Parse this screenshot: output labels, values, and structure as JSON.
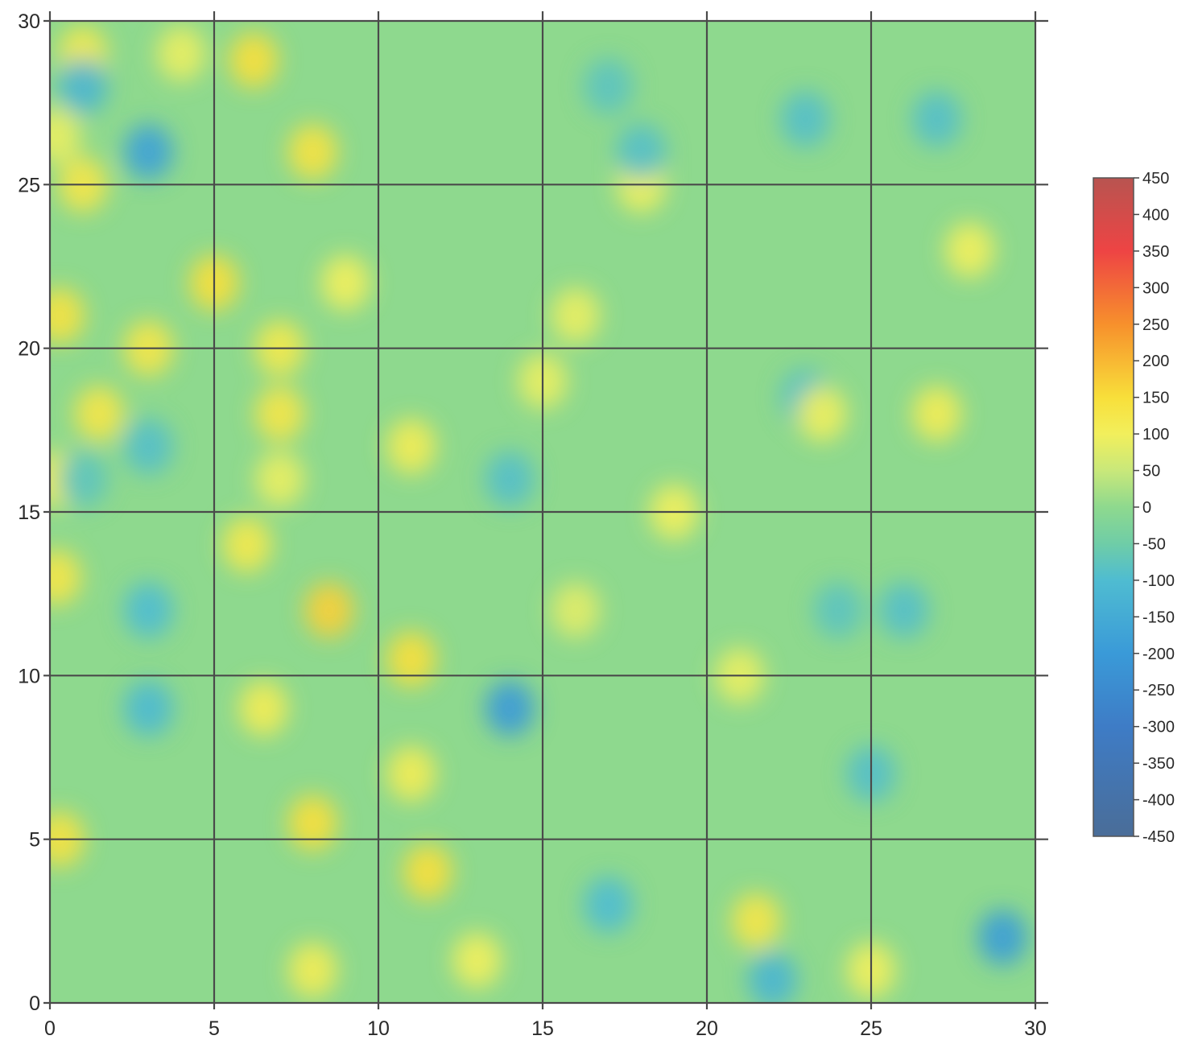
{
  "chart_data": {
    "type": "heatmap",
    "title": "",
    "xlabel": "",
    "ylabel": "",
    "xlim": [
      0,
      30
    ],
    "ylim": [
      0,
      30
    ],
    "x_ticks": [
      0,
      5,
      10,
      15,
      20,
      25,
      30
    ],
    "y_ticks": [
      0,
      5,
      10,
      15,
      20,
      25,
      30
    ],
    "x_tick_labels": [
      "0",
      "5",
      "10",
      "15",
      "20",
      "25",
      "30"
    ],
    "y_tick_labels": [
      "0",
      "5",
      "10",
      "15",
      "20",
      "25",
      "30"
    ],
    "grid": true,
    "grid_color": "#4a4a4a",
    "background_value": 0,
    "colorbar": {
      "placement": "right",
      "min": -450,
      "max": 450,
      "ticks": [
        450,
        400,
        350,
        300,
        250,
        200,
        150,
        100,
        50,
        0,
        -50,
        -100,
        -150,
        -200,
        -250,
        -300,
        -350,
        -400,
        -450
      ],
      "tick_labels": [
        "450",
        "400",
        "350",
        "300",
        "250",
        "200",
        "150",
        "100",
        "50",
        "0",
        "-50",
        "-100",
        "-150",
        "-200",
        "-250",
        "-300",
        "-350",
        "-400",
        "-450"
      ],
      "colormap": [
        {
          "value": 450,
          "color": "#b85450"
        },
        {
          "value": 350,
          "color": "#ee4444"
        },
        {
          "value": 250,
          "color": "#f7902c"
        },
        {
          "value": 150,
          "color": "#f8df3a"
        },
        {
          "value": 100,
          "color": "#f2ef5c"
        },
        {
          "value": 50,
          "color": "#c9e87a"
        },
        {
          "value": 0,
          "color": "#8ed98e"
        },
        {
          "value": -50,
          "color": "#6fcda7"
        },
        {
          "value": -100,
          "color": "#4fbcd1"
        },
        {
          "value": -200,
          "color": "#3a9ad8"
        },
        {
          "value": -300,
          "color": "#3e7cc6"
        },
        {
          "value": -450,
          "color": "#4a6d98"
        }
      ]
    },
    "features": [
      {
        "x": 1.0,
        "y": 29.0,
        "value": 120
      },
      {
        "x": 4.0,
        "y": 29.0,
        "value": 90
      },
      {
        "x": 6.2,
        "y": 28.8,
        "value": 150
      },
      {
        "x": 1.0,
        "y": 28.0,
        "value": -120
      },
      {
        "x": 3.0,
        "y": 26.0,
        "value": -180
      },
      {
        "x": 0.2,
        "y": 26.5,
        "value": 90
      },
      {
        "x": 8.0,
        "y": 26.0,
        "value": 140
      },
      {
        "x": 1.0,
        "y": 25.0,
        "value": 130
      },
      {
        "x": 5.0,
        "y": 22.0,
        "value": 150
      },
      {
        "x": 9.0,
        "y": 22.0,
        "value": 100
      },
      {
        "x": 0.3,
        "y": 21.0,
        "value": 140
      },
      {
        "x": 3.0,
        "y": 20.0,
        "value": 130
      },
      {
        "x": 7.0,
        "y": 20.0,
        "value": 120
      },
      {
        "x": 1.5,
        "y": 18.0,
        "value": 130
      },
      {
        "x": 7.0,
        "y": 18.0,
        "value": 130
      },
      {
        "x": 3.0,
        "y": 17.0,
        "value": -90
      },
      {
        "x": 11.0,
        "y": 17.0,
        "value": 110
      },
      {
        "x": 7.0,
        "y": 16.0,
        "value": 90
      },
      {
        "x": 0.2,
        "y": 16.0,
        "value": 110
      },
      {
        "x": 1.0,
        "y": 16.0,
        "value": -80
      },
      {
        "x": 6.0,
        "y": 14.0,
        "value": 120
      },
      {
        "x": 0.2,
        "y": 13.0,
        "value": 130
      },
      {
        "x": 8.5,
        "y": 12.0,
        "value": 170
      },
      {
        "x": 3.0,
        "y": 12.0,
        "value": -100
      },
      {
        "x": 11.0,
        "y": 10.5,
        "value": 150
      },
      {
        "x": 14.0,
        "y": 9.0,
        "value": -200
      },
      {
        "x": 3.0,
        "y": 9.0,
        "value": -110
      },
      {
        "x": 6.5,
        "y": 9.0,
        "value": 110
      },
      {
        "x": 8.0,
        "y": 5.5,
        "value": 150
      },
      {
        "x": 11.0,
        "y": 7.0,
        "value": 110
      },
      {
        "x": 11.5,
        "y": 4.0,
        "value": 150
      },
      {
        "x": 0.3,
        "y": 5.0,
        "value": 140
      },
      {
        "x": 8.0,
        "y": 1.0,
        "value": 110
      },
      {
        "x": 13.0,
        "y": 1.3,
        "value": 100
      },
      {
        "x": 17.0,
        "y": 3.0,
        "value": -100
      },
      {
        "x": 21.5,
        "y": 2.5,
        "value": 130
      },
      {
        "x": 22.0,
        "y": 0.7,
        "value": -120
      },
      {
        "x": 29.0,
        "y": 2.0,
        "value": -190
      },
      {
        "x": 25.0,
        "y": 1.0,
        "value": 100
      },
      {
        "x": 18.0,
        "y": 25.0,
        "value": 100
      },
      {
        "x": 16.0,
        "y": 21.0,
        "value": 90
      },
      {
        "x": 15.0,
        "y": 19.0,
        "value": 90
      },
      {
        "x": 18.0,
        "y": 26.0,
        "value": -90
      },
      {
        "x": 17.0,
        "y": 28.0,
        "value": -80
      },
      {
        "x": 23.0,
        "y": 27.0,
        "value": -90
      },
      {
        "x": 27.0,
        "y": 27.0,
        "value": -90
      },
      {
        "x": 28.0,
        "y": 23.0,
        "value": 100
      },
      {
        "x": 23.0,
        "y": 18.5,
        "value": -90
      },
      {
        "x": 23.5,
        "y": 18.0,
        "value": 100
      },
      {
        "x": 27.0,
        "y": 18.0,
        "value": 110
      },
      {
        "x": 19.0,
        "y": 15.0,
        "value": 100
      },
      {
        "x": 14.0,
        "y": 16.0,
        "value": -90
      },
      {
        "x": 24.0,
        "y": 12.0,
        "value": -80
      },
      {
        "x": 21.0,
        "y": 10.0,
        "value": 90
      },
      {
        "x": 26.0,
        "y": 12.0,
        "value": -90
      },
      {
        "x": 25.0,
        "y": 7.0,
        "value": -90
      },
      {
        "x": 16.0,
        "y": 12.0,
        "value": 80
      }
    ]
  }
}
